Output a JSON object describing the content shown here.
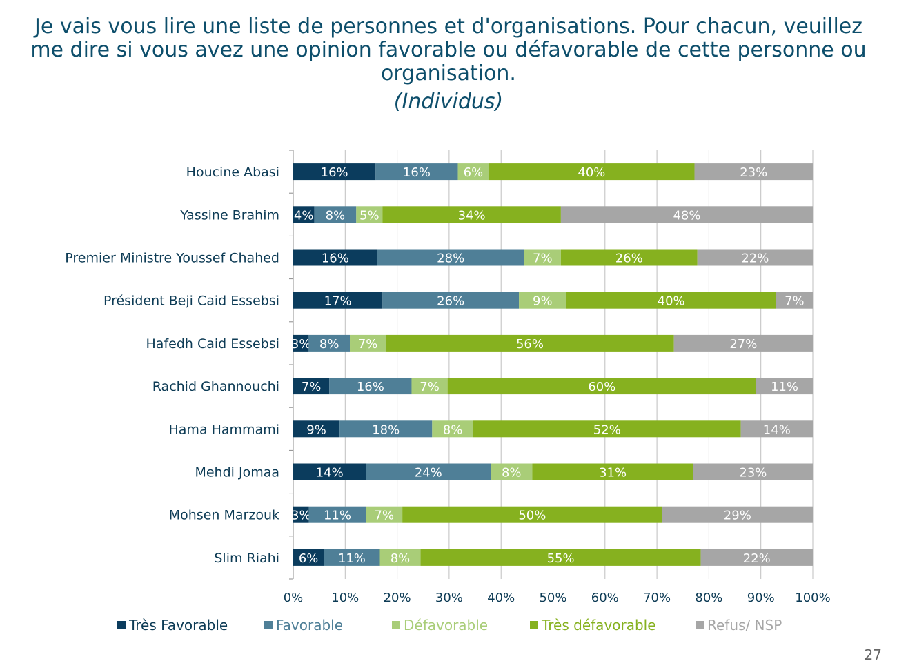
{
  "title": "Je vais vous lire une liste de personnes et d'organisations. Pour chacun, veuillez me dire si vous avez une opinion favorable ou défavorable de cette personne ou organisation.",
  "subtitle": "(Individus)",
  "page_number": "27",
  "chart_data": {
    "type": "bar",
    "orientation": "horizontal",
    "stacked": "percent",
    "categories": [
      "Houcine Abasi",
      "Yassine Brahim",
      "Premier Ministre Youssef Chahed",
      "Président Beji Caid Essebsi",
      "Hafedh Caid Essebsi",
      "Rachid Ghannouchi",
      "Hama Hammami",
      "Mehdi Jomaa",
      "Mohsen Marzouk",
      "Slim Riahi"
    ],
    "series": [
      {
        "name": "Très Favorable",
        "color": "#0b3c5d",
        "values": [
          16,
          4,
          16,
          17,
          3,
          7,
          9,
          14,
          3,
          6
        ]
      },
      {
        "name": "Favorable",
        "color": "#4f7f97",
        "values": [
          16,
          8,
          28,
          26,
          8,
          16,
          18,
          24,
          11,
          11
        ]
      },
      {
        "name": "Défavorable",
        "color": "#a9cd78",
        "values": [
          6,
          5,
          7,
          9,
          7,
          7,
          8,
          8,
          7,
          8
        ]
      },
      {
        "name": "Très défavorable",
        "color": "#86b11f",
        "values": [
          40,
          34,
          26,
          40,
          56,
          60,
          52,
          31,
          50,
          55
        ]
      },
      {
        "name": "Refus/ NSP",
        "color": "#a6a6a6",
        "values": [
          23,
          48,
          22,
          7,
          27,
          11,
          14,
          23,
          29,
          22
        ]
      }
    ],
    "x_ticks": [
      "0%",
      "10%",
      "20%",
      "30%",
      "40%",
      "50%",
      "60%",
      "70%",
      "80%",
      "90%",
      "100%"
    ],
    "xlim": [
      0,
      100
    ],
    "grid": "vertical",
    "legend_position": "bottom"
  },
  "colors": {
    "title": "#0d4e6b",
    "grid": "#bfbfbf"
  }
}
